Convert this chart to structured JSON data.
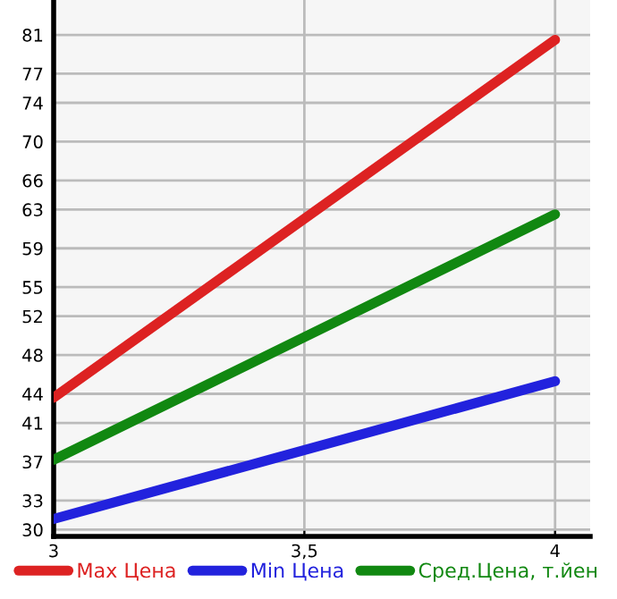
{
  "chart_data": {
    "type": "line",
    "x": [
      3,
      4
    ],
    "series": [
      {
        "name": "Max Цена",
        "color": "#dd2222",
        "values": [
          43.6,
          80.5
        ]
      },
      {
        "name": "Min Цена",
        "color": "#2222dd",
        "values": [
          31.1,
          45.3
        ]
      },
      {
        "name": "Сред.Цена, т.йен",
        "color": "#118811",
        "values": [
          37.2,
          62.5
        ]
      }
    ],
    "xlim": [
      3,
      4.07
    ],
    "xticks": [
      3,
      {
        "value": 3.5,
        "label": "3,5"
      },
      4
    ],
    "ylim": [
      29.3,
      84.6
    ],
    "yticks": [
      30,
      33,
      37,
      41,
      44,
      48,
      52,
      55,
      59,
      63,
      66,
      70,
      74,
      77,
      81
    ],
    "grid": true,
    "legend": "bottom",
    "marker": "none",
    "line_style": "solid"
  }
}
